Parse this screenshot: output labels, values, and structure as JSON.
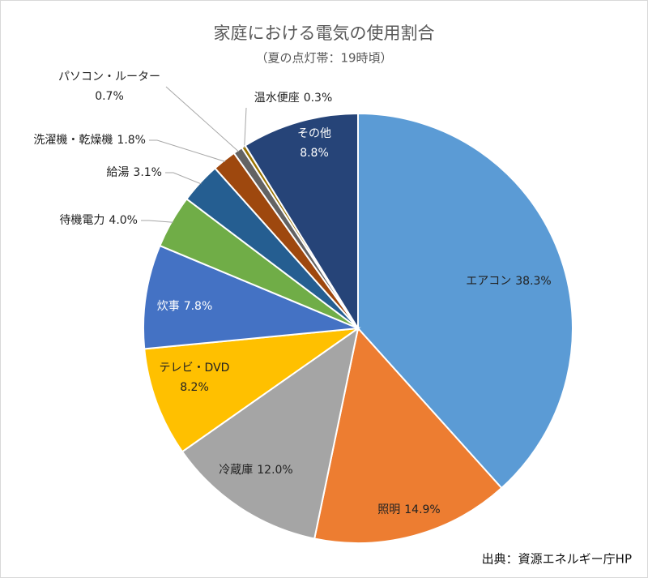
{
  "chart_data": {
    "type": "pie",
    "title": "家庭における電気の使用割合",
    "subtitle": "（夏の点灯帯：19時頃）",
    "source": "出典：資源エネルギー庁HP",
    "categories": [
      "エアコン",
      "照明",
      "冷蔵庫",
      "テレビ・DVD",
      "炊事",
      "待機電力",
      "給湯",
      "洗濯機・乾燥機",
      "パソコン・ルーター",
      "温水便座",
      "その他"
    ],
    "values": [
      38.3,
      14.9,
      12.0,
      8.2,
      7.8,
      4.0,
      3.1,
      1.8,
      0.7,
      0.3,
      8.8
    ],
    "value_labels": [
      "38.3%",
      "14.9%",
      "12.0%",
      "8.2%",
      "7.8%",
      "4.0%",
      "3.1%",
      "1.8%",
      "0.7%",
      "0.3%",
      "8.8%"
    ],
    "colors": [
      "#5b9bd5",
      "#ed7d31",
      "#a5a5a5",
      "#ffc000",
      "#4472c4",
      "#70ad47",
      "#255e91",
      "#9e480e",
      "#636363",
      "#997300",
      "#264478"
    ]
  }
}
